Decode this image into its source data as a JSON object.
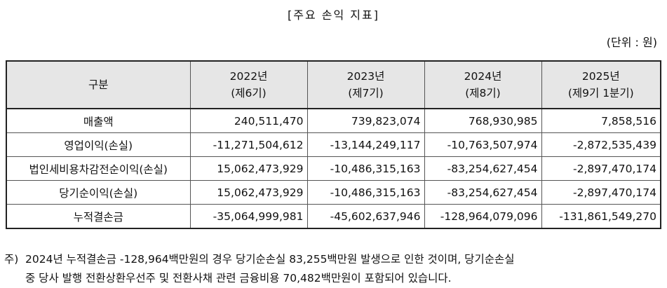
{
  "title": "[주요 손익 지표]",
  "unit": "(단위 : 원)",
  "table": {
    "header": {
      "category": "구분",
      "years": [
        {
          "year": "2022년",
          "period": "(제6기)"
        },
        {
          "year": "2023년",
          "period": "(제7기)"
        },
        {
          "year": "2024년",
          "period": "(제8기)"
        },
        {
          "year": "2025년",
          "period": "(제9기 1분기)"
        }
      ]
    },
    "rows": [
      {
        "label": "매출액",
        "values": [
          "240,511,470",
          "739,823,074",
          "768,930,985",
          "7,858,516"
        ]
      },
      {
        "label": "영업이익(손실)",
        "values": [
          "-11,271,504,612",
          "-13,144,249,117",
          "-10,763,507,974",
          "-2,872,535,439"
        ]
      },
      {
        "label": "법인세비용차감전순이익(손실)",
        "values": [
          "15,062,473,929",
          "-10,486,315,163",
          "-83,254,627,454",
          "-2,897,470,174"
        ]
      },
      {
        "label": "당기순이익(손실)",
        "values": [
          "15,062,473,929",
          "-10,486,315,163",
          "-83,254,627,454",
          "-2,897,470,174"
        ]
      },
      {
        "label": "누적결손금",
        "values": [
          "-35,064,999,981",
          "-45,602,637,946",
          "-128,964,079,096",
          "-131,861,549,270"
        ]
      }
    ]
  },
  "note": {
    "mark": "주)",
    "line1": "2024년 누적결손금 -128,964백만원의 경우 당기순손실 83,255백만원 발생으로 인한 것이며, 당기순손실",
    "line2": "중 당사 발행 전환상환우선주 및 전환사채 관련 금융비용 70,482백만원이 포함되어 있습니다."
  }
}
